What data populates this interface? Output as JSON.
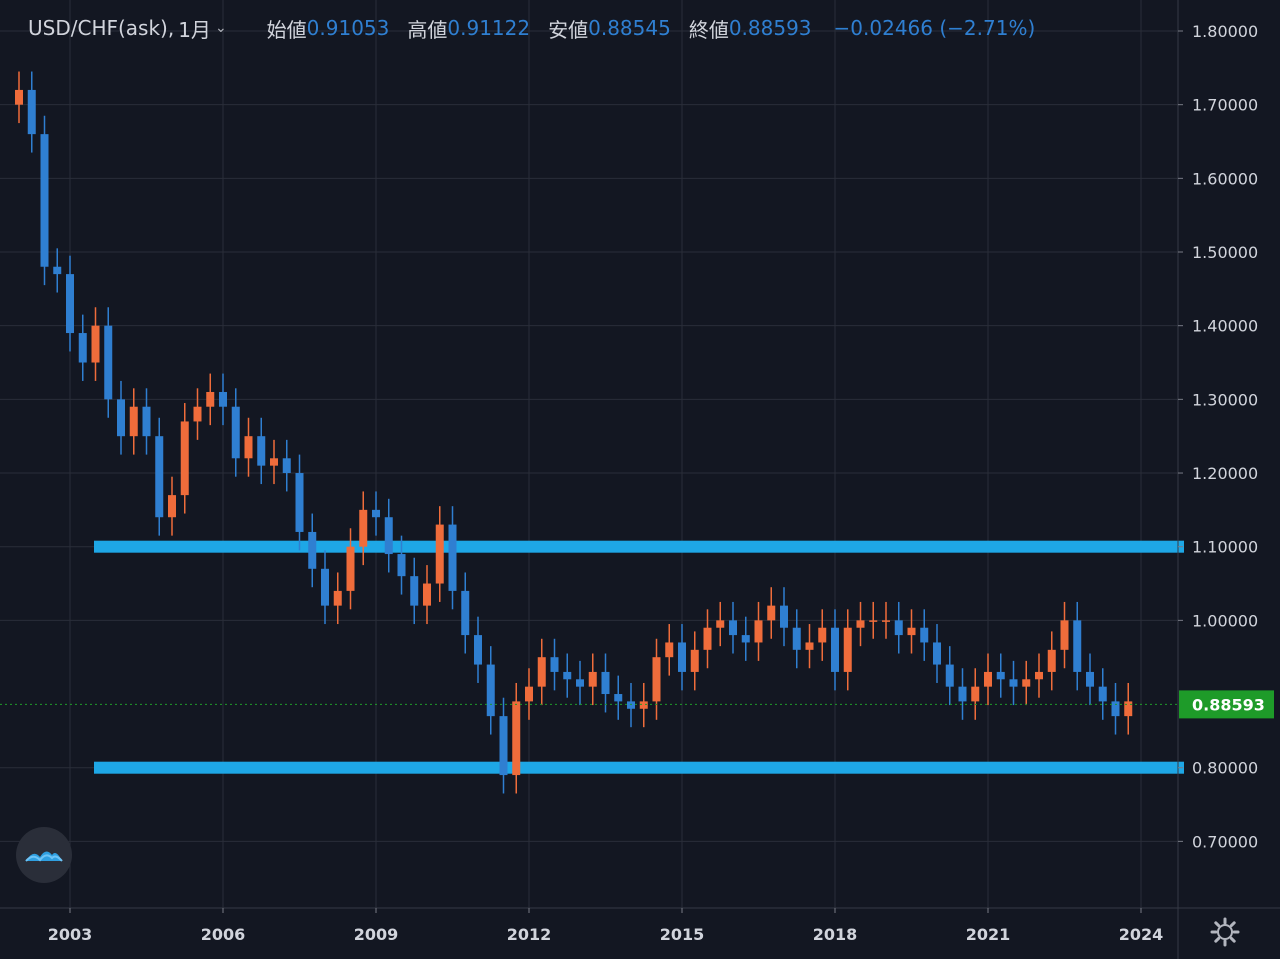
{
  "header": {
    "symbol": "USD/CHF(ask),",
    "interval": "1月",
    "interval_chevron": "⌄",
    "open_label": "始値",
    "open_value": "0.91053",
    "high_label": "高値",
    "high_value": "0.91122",
    "low_label": "安値",
    "low_value": "0.88545",
    "close_label": "終値",
    "close_value": "0.88593",
    "change": "−0.02466 (−2.71%)"
  },
  "price_axis": {
    "ticks": [
      "1.80000",
      "1.70000",
      "1.60000",
      "1.50000",
      "1.40000",
      "1.30000",
      "1.20000",
      "1.10000",
      "1.00000",
      "0.80000",
      "0.70000"
    ],
    "last_price_label": "0.88593"
  },
  "time_axis": {
    "ticks": [
      "2003",
      "2006",
      "2009",
      "2012",
      "2015",
      "2018",
      "2021",
      "2024"
    ]
  },
  "colors": {
    "background": "#131722",
    "up": "#ef6c3b",
    "down": "#2f7fd1",
    "hline": "#1ea7e6",
    "last_price": "#1e9b29",
    "grid": "#2a2e39"
  },
  "chart_data": {
    "type": "candlestick",
    "symbol": "USD/CHF(ask)",
    "interval": "1月",
    "ylim": [
      0.6,
      1.8
    ],
    "xlim": [
      2001.9,
      2024.5
    ],
    "horizontal_lines": [
      1.1,
      0.8
    ],
    "last_price": 0.88593,
    "series": [
      {
        "name": "USD/CHF",
        "x": [
          2002.0,
          2002.25,
          2002.5,
          2002.75,
          2003.0,
          2003.25,
          2003.5,
          2003.75,
          2004.0,
          2004.25,
          2004.5,
          2004.75,
          2005.0,
          2005.25,
          2005.5,
          2005.75,
          2006.0,
          2006.25,
          2006.5,
          2006.75,
          2007.0,
          2007.25,
          2007.5,
          2007.75,
          2008.0,
          2008.25,
          2008.5,
          2008.75,
          2009.0,
          2009.25,
          2009.5,
          2009.75,
          2010.0,
          2010.25,
          2010.5,
          2010.75,
          2011.0,
          2011.25,
          2011.5,
          2011.75,
          2012.0,
          2012.25,
          2012.5,
          2012.75,
          2013.0,
          2013.25,
          2013.5,
          2013.75,
          2014.0,
          2014.25,
          2014.5,
          2014.75,
          2015.0,
          2015.25,
          2015.5,
          2015.75,
          2016.0,
          2016.25,
          2016.5,
          2016.75,
          2017.0,
          2017.25,
          2017.5,
          2017.75,
          2018.0,
          2018.25,
          2018.5,
          2018.75,
          2019.0,
          2019.25,
          2019.5,
          2019.75,
          2020.0,
          2020.25,
          2020.5,
          2020.75,
          2021.0,
          2021.25,
          2021.5,
          2021.75,
          2022.0,
          2022.25,
          2022.5,
          2022.75,
          2023.0,
          2023.25,
          2023.5,
          2023.75
        ],
        "close": [
          1.72,
          1.66,
          1.48,
          1.47,
          1.39,
          1.35,
          1.4,
          1.3,
          1.25,
          1.29,
          1.25,
          1.14,
          1.17,
          1.27,
          1.29,
          1.31,
          1.29,
          1.22,
          1.25,
          1.21,
          1.22,
          1.2,
          1.12,
          1.07,
          1.02,
          1.04,
          1.1,
          1.15,
          1.14,
          1.09,
          1.06,
          1.02,
          1.05,
          1.13,
          1.04,
          0.98,
          0.94,
          0.87,
          0.79,
          0.89,
          0.91,
          0.95,
          0.93,
          0.92,
          0.91,
          0.93,
          0.9,
          0.89,
          0.88,
          0.89,
          0.95,
          0.97,
          0.93,
          0.96,
          0.99,
          1.0,
          0.98,
          0.97,
          1.0,
          1.02,
          0.99,
          0.96,
          0.97,
          0.99,
          0.93,
          0.99,
          1.0,
          1.0,
          1.0,
          0.98,
          0.99,
          0.97,
          0.94,
          0.91,
          0.89,
          0.91,
          0.93,
          0.92,
          0.91,
          0.92,
          0.93,
          0.96,
          1.0,
          0.93,
          0.91,
          0.89,
          0.87,
          0.89
        ]
      }
    ]
  }
}
